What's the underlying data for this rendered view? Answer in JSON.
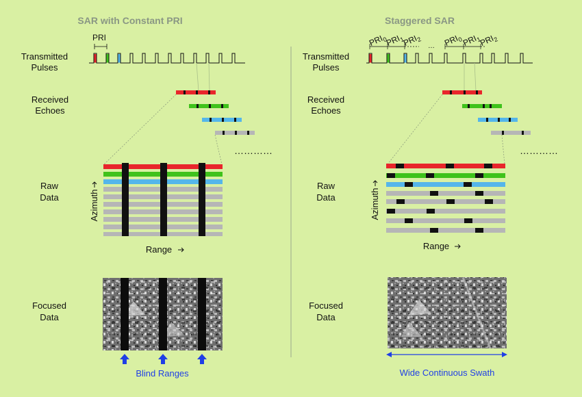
{
  "colors": {
    "background": "#d9f0a3",
    "red": "#e8262b",
    "green": "#3fc21b",
    "blue": "#55b6ea",
    "gray": "#b6b6b6",
    "gap": "#111111",
    "title": "#8a9784",
    "accent": "#1f3fe6"
  },
  "left": {
    "title": "SAR with Constant PRI",
    "pri_label": "PRI",
    "row_labels": {
      "transmitted": [
        "Transmitted",
        "Pulses"
      ],
      "received": [
        "Received",
        "Echoes"
      ],
      "raw": [
        "Raw",
        "Data"
      ],
      "focused": [
        "Focused",
        "Data"
      ]
    },
    "azimuth_label": "Azimuth",
    "range_label": "Range",
    "ellipsis": "…………",
    "footer_label": "Blind Ranges",
    "footer_icon": "up-arrow-icon"
  },
  "right": {
    "title": "Staggered SAR",
    "pri_labels": [
      {
        "base": "PRI",
        "sub": "0"
      },
      {
        "base": "PRI",
        "sub": "1"
      },
      {
        "base": "PRI",
        "sub": "2"
      },
      {
        "base": "PRI",
        "sub": "0"
      },
      {
        "base": "PRI",
        "sub": "1"
      },
      {
        "base": "PRI",
        "sub": "2"
      }
    ],
    "row_labels": {
      "transmitted": [
        "Transmitted",
        "Pulses"
      ],
      "received": [
        "Received",
        "Echoes"
      ],
      "raw": [
        "Raw",
        "Data"
      ],
      "focused": [
        "Focused",
        "Data"
      ]
    },
    "azimuth_label": "Azimuth",
    "range_label": "Range",
    "ellipsis": "…………",
    "footer_label": "Wide Continuous Swath",
    "footer_icon": "double-arrow-icon"
  }
}
